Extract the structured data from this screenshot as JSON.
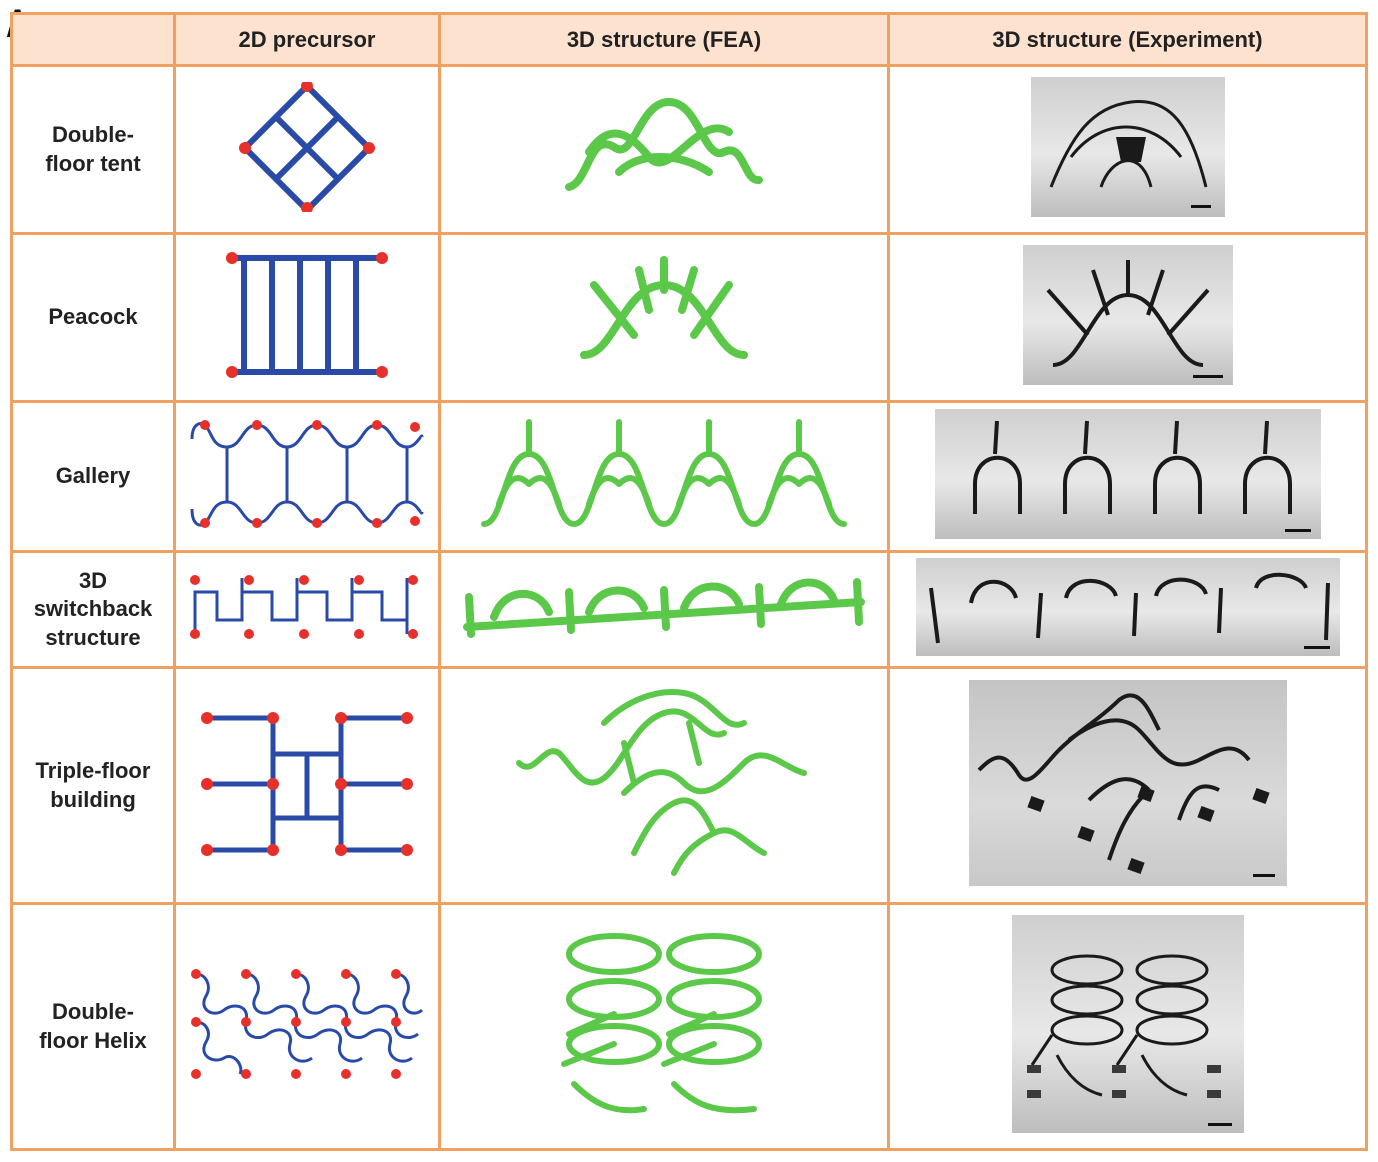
{
  "panel_label": "A",
  "headers": [
    "2D precursor",
    "3D structure (FEA)",
    "3D structure (Experiment)"
  ],
  "rows": [
    {
      "label_lines": [
        "Double-",
        "floor tent"
      ]
    },
    {
      "label_lines": [
        "Peacock"
      ]
    },
    {
      "label_lines": [
        "Gallery"
      ]
    },
    {
      "label_lines": [
        "3D",
        "switchback",
        "structure"
      ]
    },
    {
      "label_lines": [
        "Triple-floor",
        "building"
      ]
    },
    {
      "label_lines": [
        "Double-",
        "floor Helix"
      ]
    }
  ],
  "colors": {
    "border": "#f0a060",
    "header_bg": "#fde3cf",
    "precursor_line": "#2a4aa8",
    "anchor_dot": "#e8302a",
    "fea_green": "#5cc84a",
    "photo_dark": "#1a1a1a"
  }
}
